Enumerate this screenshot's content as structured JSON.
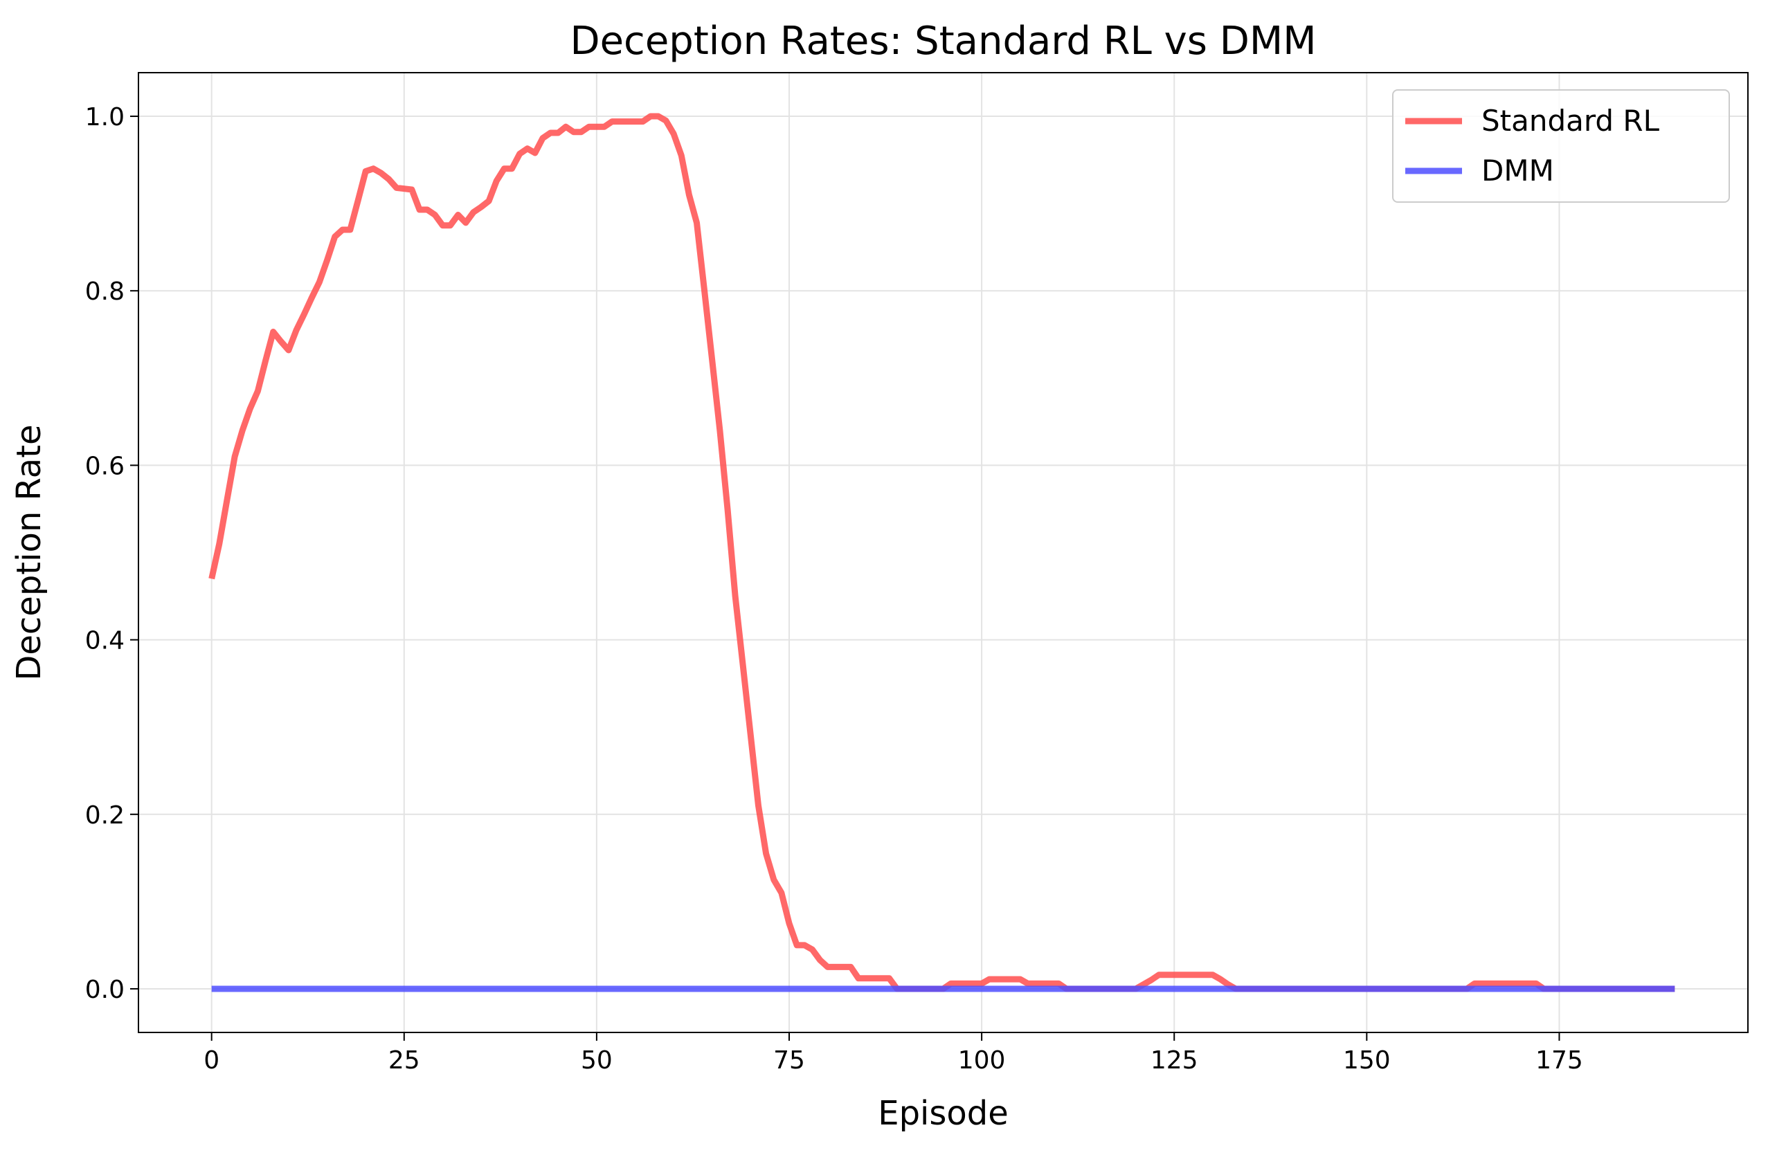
{
  "chart_data": {
    "type": "line",
    "title": "Deception Rates: Standard RL vs DMM",
    "xlabel": "Episode",
    "ylabel": "Deception Rate",
    "xlim": [
      -9.5,
      199.5
    ],
    "ylim": [
      -0.05,
      1.05
    ],
    "xticks": [
      0,
      25,
      50,
      75,
      100,
      125,
      150,
      175
    ],
    "xtick_labels": [
      "0",
      "25",
      "50",
      "75",
      "100",
      "125",
      "150",
      "175"
    ],
    "yticks": [
      0.0,
      0.2,
      0.4,
      0.6,
      0.8,
      1.0
    ],
    "ytick_labels": [
      "0.0",
      "0.2",
      "0.4",
      "0.6",
      "0.8",
      "1.0"
    ],
    "grid": true,
    "legend_position": "upper right",
    "series": [
      {
        "name": "Standard RL",
        "color": "#ff4d4d",
        "points": [
          [
            0,
            0.47
          ],
          [
            1,
            0.51
          ],
          [
            2,
            0.56
          ],
          [
            3,
            0.61
          ],
          [
            4,
            0.64
          ],
          [
            5,
            0.665
          ],
          [
            6,
            0.685
          ],
          [
            7,
            0.72
          ],
          [
            8,
            0.753
          ],
          [
            9,
            0.742
          ],
          [
            10,
            0.732
          ],
          [
            11,
            0.755
          ],
          [
            12,
            0.773
          ],
          [
            13,
            0.792
          ],
          [
            14,
            0.81
          ],
          [
            15,
            0.835
          ],
          [
            16,
            0.862
          ],
          [
            17,
            0.87
          ],
          [
            18,
            0.87
          ],
          [
            19,
            0.903
          ],
          [
            20,
            0.937
          ],
          [
            21,
            0.94
          ],
          [
            22,
            0.935
          ],
          [
            23,
            0.928
          ],
          [
            24,
            0.918
          ],
          [
            25,
            0.917
          ],
          [
            26,
            0.916
          ],
          [
            27,
            0.893
          ],
          [
            28,
            0.893
          ],
          [
            29,
            0.887
          ],
          [
            30,
            0.875
          ],
          [
            31,
            0.875
          ],
          [
            32,
            0.887
          ],
          [
            33,
            0.878
          ],
          [
            34,
            0.89
          ],
          [
            35,
            0.896
          ],
          [
            36,
            0.903
          ],
          [
            37,
            0.926
          ],
          [
            38,
            0.94
          ],
          [
            39,
            0.94
          ],
          [
            40,
            0.957
          ],
          [
            41,
            0.963
          ],
          [
            42,
            0.958
          ],
          [
            43,
            0.975
          ],
          [
            44,
            0.981
          ],
          [
            45,
            0.981
          ],
          [
            46,
            0.988
          ],
          [
            47,
            0.982
          ],
          [
            48,
            0.982
          ],
          [
            49,
            0.988
          ],
          [
            50,
            0.988
          ],
          [
            51,
            0.988
          ],
          [
            52,
            0.994
          ],
          [
            53,
            0.994
          ],
          [
            54,
            0.994
          ],
          [
            55,
            0.994
          ],
          [
            56,
            0.994
          ],
          [
            57,
            1.0
          ],
          [
            58,
            1.0
          ],
          [
            59,
            0.995
          ],
          [
            60,
            0.98
          ],
          [
            61,
            0.955
          ],
          [
            62,
            0.91
          ],
          [
            63,
            0.878
          ],
          [
            64,
            0.8
          ],
          [
            65,
            0.72
          ],
          [
            66,
            0.64
          ],
          [
            67,
            0.55
          ],
          [
            68,
            0.45
          ],
          [
            69,
            0.37
          ],
          [
            70,
            0.29
          ],
          [
            71,
            0.21
          ],
          [
            72,
            0.155
          ],
          [
            73,
            0.125
          ],
          [
            74,
            0.11
          ],
          [
            75,
            0.075
          ],
          [
            76,
            0.05
          ],
          [
            77,
            0.05
          ],
          [
            78,
            0.045
          ],
          [
            79,
            0.033
          ],
          [
            80,
            0.025
          ],
          [
            81,
            0.025
          ],
          [
            82,
            0.025
          ],
          [
            83,
            0.025
          ],
          [
            84,
            0.012
          ],
          [
            85,
            0.012
          ],
          [
            86,
            0.012
          ],
          [
            87,
            0.012
          ],
          [
            88,
            0.012
          ],
          [
            89,
            0.0
          ],
          [
            90,
            0.0
          ],
          [
            91,
            0.0
          ],
          [
            92,
            0.0
          ],
          [
            93,
            0.0
          ],
          [
            94,
            0.0
          ],
          [
            95,
            0.0
          ],
          [
            96,
            0.006
          ],
          [
            97,
            0.006
          ],
          [
            98,
            0.006
          ],
          [
            99,
            0.006
          ],
          [
            100,
            0.006
          ],
          [
            101,
            0.011
          ],
          [
            102,
            0.011
          ],
          [
            103,
            0.011
          ],
          [
            104,
            0.011
          ],
          [
            105,
            0.011
          ],
          [
            106,
            0.006
          ],
          [
            107,
            0.006
          ],
          [
            108,
            0.006
          ],
          [
            109,
            0.006
          ],
          [
            110,
            0.006
          ],
          [
            111,
            0.0
          ],
          [
            112,
            0.0
          ],
          [
            113,
            0.0
          ],
          [
            114,
            0.0
          ],
          [
            115,
            0.0
          ],
          [
            116,
            0.0
          ],
          [
            117,
            0.0
          ],
          [
            118,
            0.0
          ],
          [
            119,
            0.0
          ],
          [
            120,
            0.0
          ],
          [
            121,
            0.005
          ],
          [
            122,
            0.01
          ],
          [
            123,
            0.016
          ],
          [
            124,
            0.016
          ],
          [
            125,
            0.016
          ],
          [
            126,
            0.016
          ],
          [
            127,
            0.016
          ],
          [
            128,
            0.016
          ],
          [
            129,
            0.016
          ],
          [
            130,
            0.016
          ],
          [
            131,
            0.011
          ],
          [
            132,
            0.005
          ],
          [
            133,
            0.0
          ],
          [
            134,
            0.0
          ],
          [
            135,
            0.0
          ],
          [
            140,
            0.0
          ],
          [
            145,
            0.0
          ],
          [
            150,
            0.0
          ],
          [
            155,
            0.0
          ],
          [
            160,
            0.0
          ],
          [
            163,
            0.0
          ],
          [
            164,
            0.006
          ],
          [
            165,
            0.006
          ],
          [
            166,
            0.006
          ],
          [
            167,
            0.006
          ],
          [
            168,
            0.006
          ],
          [
            169,
            0.006
          ],
          [
            170,
            0.006
          ],
          [
            171,
            0.006
          ],
          [
            172,
            0.006
          ],
          [
            173,
            0.0
          ],
          [
            175,
            0.0
          ],
          [
            180,
            0.0
          ],
          [
            185,
            0.0
          ],
          [
            190,
            0.0
          ]
        ]
      },
      {
        "name": "DMM",
        "color": "#4d4dff",
        "points": [
          [
            0,
            0.0
          ],
          [
            190,
            0.0
          ]
        ]
      }
    ]
  }
}
